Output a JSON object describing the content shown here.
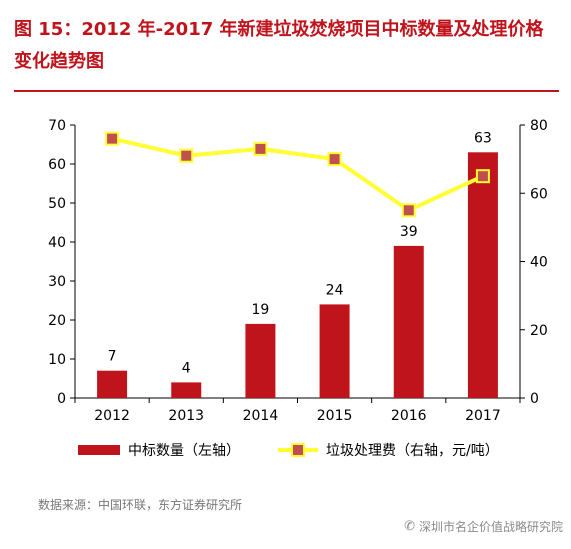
{
  "figure_title": "图 15：2012 年-2017 年新建垃圾焚烧项目中标数量及处理价格变化趋势图",
  "source_note": "数据来源：中国环联，东方证券研究所",
  "watermark_text": "深圳市名企价值战略研究院",
  "colors": {
    "bar": "#c0141c",
    "line": "#ffff33",
    "marker": "#c0504d",
    "title": "#c0141c"
  },
  "chart_data": {
    "type": "bar",
    "categories": [
      "2012",
      "2013",
      "2014",
      "2015",
      "2016",
      "2017"
    ],
    "series": [
      {
        "name": "中标数量（左轴）",
        "type": "bar",
        "axis": "left",
        "values": [
          7,
          4,
          19,
          24,
          39,
          63
        ],
        "labels": [
          "7",
          "4",
          "19",
          "24",
          "39",
          "63"
        ]
      },
      {
        "name": "垃圾处理费（右轴，元/吨）",
        "type": "line",
        "axis": "right",
        "values": [
          76,
          71,
          73,
          70,
          55,
          65
        ]
      }
    ],
    "y_left": {
      "min": 0,
      "max": 70,
      "ticks": [
        "0",
        "10",
        "20",
        "30",
        "40",
        "50",
        "60",
        "70"
      ]
    },
    "y_right": {
      "min": 0,
      "max": 80,
      "ticks": [
        "0",
        "20",
        "40",
        "60",
        "80"
      ]
    },
    "grid": false,
    "legend_position": "bottom"
  }
}
